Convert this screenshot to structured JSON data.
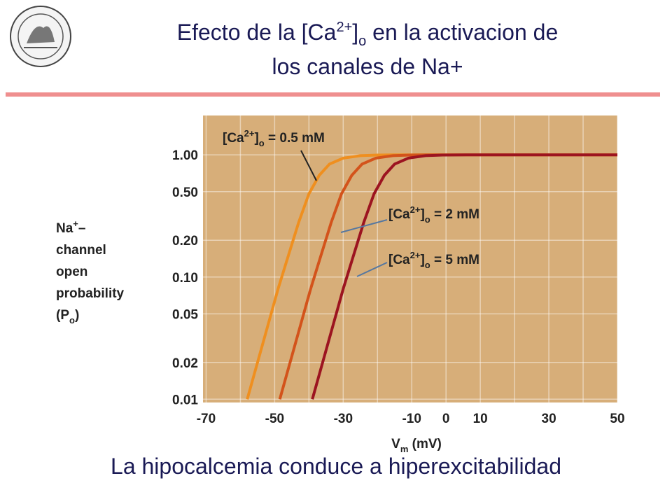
{
  "slide": {
    "title": {
      "line1": [
        "Efecto de la [Ca",
        "2+",
        "]",
        "o",
        " en la activacion de"
      ],
      "line2": "los canales de Na+"
    },
    "footer": "La hipocalcemia conduce a hiperexcitabilidad"
  },
  "chart_data": {
    "type": "line",
    "log_y": true,
    "grid": true,
    "background": "#d7ae79",
    "xlim": [
      -70.5,
      50
    ],
    "ylim": [
      0.0094,
      2.1
    ],
    "xticks": [
      -70,
      -50,
      -30,
      -10,
      0,
      10,
      30,
      50
    ],
    "xgrid": [
      -70,
      -60,
      -50,
      -40,
      -30,
      -20,
      -10,
      0,
      10,
      20,
      30,
      40,
      50
    ],
    "yticks": [
      {
        "value": 1,
        "label": "1.00"
      },
      {
        "value": 0.5,
        "label": "0.50"
      },
      {
        "value": 0.2,
        "label": "0.20"
      },
      {
        "value": 0.1,
        "label": "0.10"
      },
      0.05,
      0.02,
      0.01
    ],
    "xlabel": [
      "V",
      "m",
      " (mV)"
    ],
    "ylabel": [
      [
        "Na",
        "+",
        "–"
      ],
      [
        "channel"
      ],
      [
        "open"
      ],
      [
        "probability"
      ],
      [
        "(P",
        "o",
        ")"
      ]
    ],
    "series": [
      {
        "name": [
          "[Ca",
          "2+",
          "]",
          "o",
          " = 0.5 mM"
        ],
        "color": "#ef8f1f",
        "x": [
          -58,
          -55,
          -52,
          -49,
          -46,
          -43,
          -40,
          -37,
          -34,
          -30,
          -25,
          -20,
          -15,
          50
        ],
        "values": [
          0.01,
          0.02,
          0.04,
          0.08,
          0.15,
          0.28,
          0.48,
          0.68,
          0.84,
          0.94,
          0.985,
          0.997,
          1.0,
          1.0
        ]
      },
      {
        "name": [
          "[Ca",
          "2+",
          "]",
          "o",
          " = 2 mM"
        ],
        "color": "#d3531b",
        "x": [
          -48.5,
          -45.5,
          -42.5,
          -39.5,
          -36.5,
          -33.5,
          -30.5,
          -27.5,
          -24.5,
          -20.5,
          -15.5,
          -10.5,
          -5,
          50
        ],
        "values": [
          0.01,
          0.02,
          0.04,
          0.08,
          0.15,
          0.28,
          0.48,
          0.68,
          0.84,
          0.94,
          0.985,
          0.997,
          1.0,
          1.0
        ]
      },
      {
        "name": [
          "[Ca",
          "2+",
          "]",
          "o",
          " = 5 mM"
        ],
        "color": "#9c1420",
        "x": [
          -39,
          -36,
          -33,
          -30,
          -27,
          -24,
          -21,
          -18,
          -15,
          -11,
          -6,
          -1,
          6,
          50
        ],
        "values": [
          0.01,
          0.02,
          0.04,
          0.08,
          0.15,
          0.28,
          0.48,
          0.68,
          0.84,
          0.94,
          0.985,
          0.997,
          1.0,
          1.0
        ]
      }
    ]
  }
}
